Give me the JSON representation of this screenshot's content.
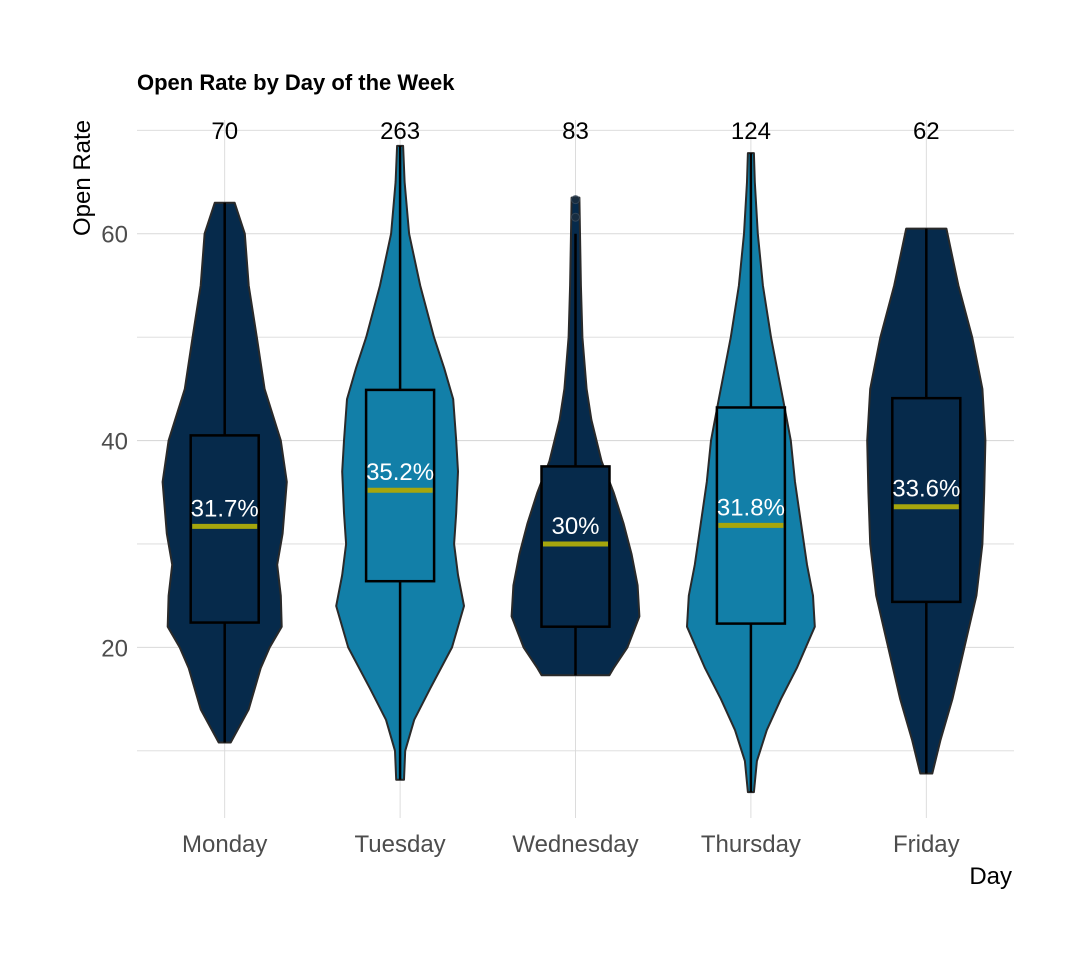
{
  "chart_data": {
    "type": "violin",
    "title": "Open Rate by Day of the Week",
    "xlabel": "Day",
    "ylabel": "Open Rate",
    "ylim": [
      3.5,
      71
    ],
    "yticks": [
      20,
      40,
      60
    ],
    "grid": true,
    "legend": "none",
    "colors": {
      "dark": "#062a4b",
      "light": "#127fa8",
      "median": "#a6a60d",
      "outline": "#000000"
    },
    "categories": [
      {
        "label": "Monday",
        "count": "70",
        "fill": "dark",
        "min": 10.8,
        "max": 63.0,
        "q1": 22.4,
        "median": 31.7,
        "q3": 40.5,
        "whisker_low": 10.8,
        "whisker_high": 63.0,
        "median_label": "31.7%",
        "outliers": [],
        "profile": [
          [
            10.8,
            2.0
          ],
          [
            14,
            8
          ],
          [
            18,
            12
          ],
          [
            20,
            15
          ],
          [
            22,
            19
          ],
          [
            25,
            18.7
          ],
          [
            28,
            17.5
          ],
          [
            31,
            19.3
          ],
          [
            36,
            20.7
          ],
          [
            40,
            18.7
          ],
          [
            45,
            13.3
          ],
          [
            50,
            10.7
          ],
          [
            55,
            8
          ],
          [
            60,
            6.7
          ],
          [
            63,
            3.3
          ]
        ]
      },
      {
        "label": "Tuesday",
        "count": "263",
        "fill": "light",
        "min": 7.2,
        "max": 68.5,
        "q1": 26.4,
        "median": 35.2,
        "q3": 44.9,
        "whisker_low": 7.2,
        "whisker_high": 68.5,
        "median_label": "35.2%",
        "outliers": [],
        "profile": [
          [
            7.2,
            1.3
          ],
          [
            10,
            1.7
          ],
          [
            13,
            4.7
          ],
          [
            16,
            10
          ],
          [
            20,
            17.3
          ],
          [
            24,
            21.3
          ],
          [
            27,
            19.3
          ],
          [
            30,
            18
          ],
          [
            33,
            18.7
          ],
          [
            37,
            19.3
          ],
          [
            40,
            18.7
          ],
          [
            44,
            17.7
          ],
          [
            47,
            14.7
          ],
          [
            50,
            11.3
          ],
          [
            55,
            6.7
          ],
          [
            60,
            3
          ],
          [
            65,
            1.5
          ],
          [
            68.5,
            1
          ]
        ]
      },
      {
        "label": "Wednesday",
        "count": "83",
        "fill": "dark",
        "min": 17.3,
        "max": 63.5,
        "q1": 22.0,
        "median": 30.0,
        "q3": 37.5,
        "whisker_low": 17.3,
        "whisker_high": 60.0,
        "median_label": "30%",
        "outliers": [
          61.6,
          63.3
        ],
        "profile": [
          [
            17.3,
            11.3
          ],
          [
            18,
            12.7
          ],
          [
            20,
            17.3
          ],
          [
            23,
            21.3
          ],
          [
            26,
            20.7
          ],
          [
            29,
            18.7
          ],
          [
            32,
            16
          ],
          [
            35,
            12.7
          ],
          [
            38,
            8.7
          ],
          [
            42,
            5.3
          ],
          [
            45,
            3.7
          ],
          [
            50,
            2.3
          ],
          [
            55,
            1.8
          ],
          [
            60,
            1.5
          ],
          [
            63.5,
            1.3
          ]
        ]
      },
      {
        "label": "Thursday",
        "count": "124",
        "fill": "light",
        "min": 6.0,
        "max": 67.8,
        "q1": 22.3,
        "median": 31.8,
        "q3": 43.2,
        "whisker_low": 6.0,
        "whisker_high": 67.8,
        "median_label": "31.8%",
        "outliers": [],
        "profile": [
          [
            6,
            1
          ],
          [
            9,
            2
          ],
          [
            12,
            5.3
          ],
          [
            15,
            10
          ],
          [
            18,
            15.3
          ],
          [
            22,
            21.3
          ],
          [
            25,
            20.7
          ],
          [
            28,
            18.7
          ],
          [
            32,
            16.7
          ],
          [
            36,
            14.7
          ],
          [
            40,
            13.3
          ],
          [
            44,
            10.7
          ],
          [
            50,
            6.7
          ],
          [
            55,
            4
          ],
          [
            60,
            2.3
          ],
          [
            65,
            1.3
          ],
          [
            67.8,
            1
          ]
        ]
      },
      {
        "label": "Friday",
        "count": "62",
        "fill": "dark",
        "min": 7.8,
        "max": 60.5,
        "q1": 24.4,
        "median": 33.6,
        "q3": 44.1,
        "whisker_low": 7.8,
        "whisker_high": 60.5,
        "median_label": "33.6%",
        "outliers": [],
        "profile": [
          [
            7.8,
            2
          ],
          [
            11,
            4.7
          ],
          [
            15,
            8.7
          ],
          [
            20,
            12.7
          ],
          [
            25,
            16.7
          ],
          [
            30,
            18.7
          ],
          [
            35,
            19.3
          ],
          [
            40,
            19.7
          ],
          [
            45,
            18.7
          ],
          [
            50,
            15.3
          ],
          [
            55,
            10.7
          ],
          [
            60.5,
            6.7
          ]
        ]
      }
    ]
  }
}
